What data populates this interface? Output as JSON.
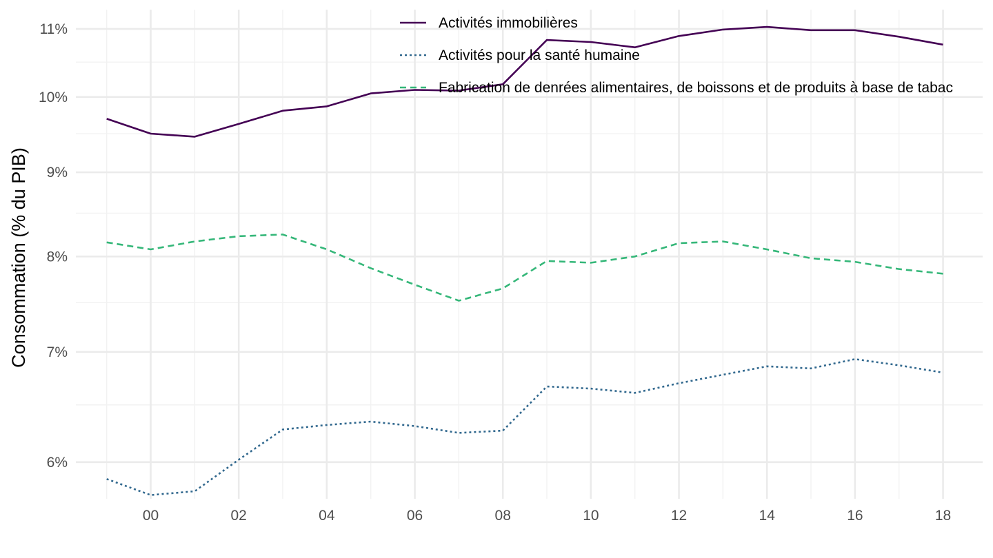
{
  "chart_data": {
    "type": "line",
    "title": "",
    "xlabel": "",
    "ylabel": "Consommation (% du PIB)",
    "y_scale": "log",
    "ylim": [
      5.7,
      11.3
    ],
    "xlim": [
      1998.3,
      2018.9
    ],
    "x_ticks": [
      2000,
      2002,
      2004,
      2006,
      2008,
      2010,
      2012,
      2014,
      2016,
      2018
    ],
    "x_tick_labels": [
      "00",
      "02",
      "04",
      "06",
      "08",
      "10",
      "12",
      "14",
      "16",
      "18"
    ],
    "y_ticks": [
      6,
      7,
      8,
      9,
      10,
      11
    ],
    "y_tick_labels": [
      "6%",
      "7%",
      "8%",
      "9%",
      "10%",
      "11%"
    ],
    "y_minor_ticks": [
      6.5,
      7.5,
      8.5,
      9.5,
      10.5
    ],
    "grid": true,
    "legend_position": "top",
    "x": [
      1999,
      2000,
      2001,
      2002,
      2003,
      2004,
      2005,
      2006,
      2007,
      2008,
      2009,
      2010,
      2011,
      2012,
      2013,
      2014,
      2015,
      2016,
      2017,
      2018
    ],
    "series": [
      {
        "name": "Activités immobilières",
        "color": "#440154",
        "dash": "solid",
        "values": [
          9.7,
          9.5,
          9.46,
          9.63,
          9.81,
          9.87,
          10.05,
          10.1,
          10.09,
          10.18,
          10.83,
          10.8,
          10.72,
          10.89,
          10.99,
          11.03,
          10.98,
          10.98,
          10.88,
          10.76
        ]
      },
      {
        "name": "Activités pour la santé humaine",
        "color": "#31688E",
        "dash": "dotted",
        "values": [
          5.86,
          5.73,
          5.76,
          6.02,
          6.28,
          6.32,
          6.35,
          6.31,
          6.25,
          6.27,
          6.67,
          6.65,
          6.61,
          6.7,
          6.78,
          6.86,
          6.84,
          6.93,
          6.87,
          6.8
        ]
      },
      {
        "name": "Fabrication de denrées alimentaires, de boissons et de produits à base de tabac",
        "color": "#35B779",
        "dash": "dashed",
        "values": [
          8.16,
          8.08,
          8.17,
          8.23,
          8.25,
          8.08,
          7.87,
          7.69,
          7.52,
          7.65,
          7.95,
          7.93,
          8.0,
          8.15,
          8.17,
          8.08,
          7.98,
          7.94,
          7.86,
          7.81
        ]
      }
    ]
  }
}
